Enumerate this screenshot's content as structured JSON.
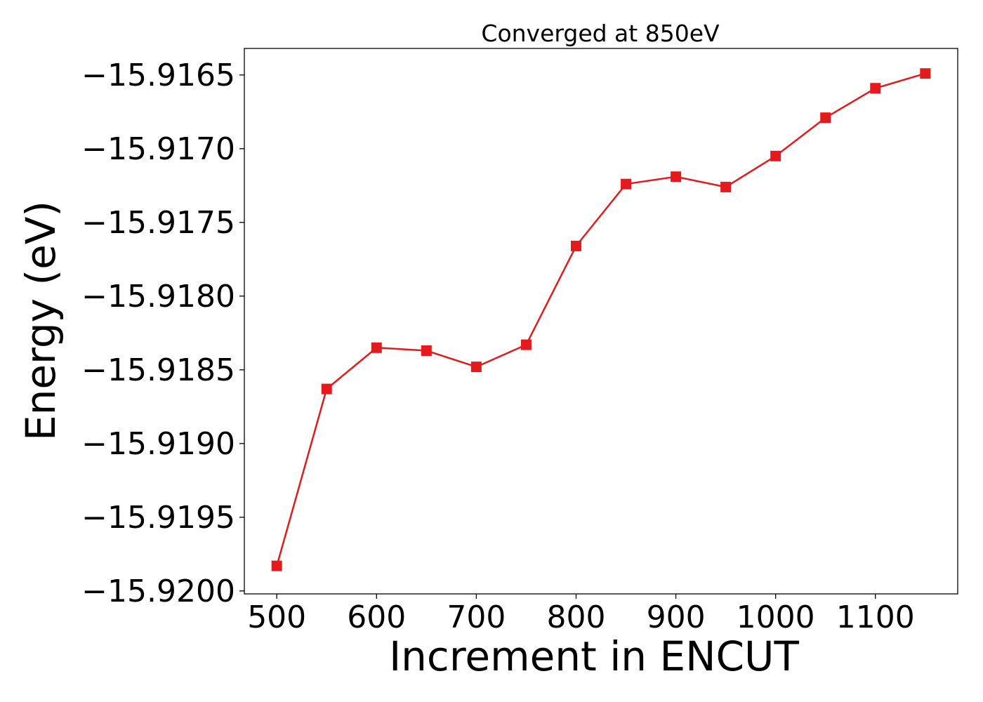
{
  "chart_data": {
    "type": "line",
    "title": "Converged at 850eV",
    "xlabel": "Increment in ENCUT",
    "ylabel": "Energy (eV)",
    "xlim": [
      467.5,
      1182.5
    ],
    "ylim": [
      -15.92002,
      -15.91632
    ],
    "x_ticks": [
      500,
      600,
      700,
      800,
      900,
      1000,
      1100
    ],
    "y_ticks": [
      -15.9165,
      -15.917,
      -15.9175,
      -15.918,
      -15.9185,
      -15.919,
      -15.9195,
      -15.92
    ],
    "x_tick_labels": [
      "500",
      "600",
      "700",
      "800",
      "900",
      "1000",
      "1100"
    ],
    "y_tick_labels": [
      "−15.9165",
      "−15.9170",
      "−15.9175",
      "−15.9180",
      "−15.9185",
      "−15.9190",
      "−15.9195",
      "−15.9200"
    ],
    "grid": false,
    "series": [
      {
        "color": "#e41a1c",
        "marker": "square",
        "x": [
          500,
          550,
          600,
          650,
          700,
          750,
          800,
          850,
          900,
          950,
          1000,
          1050,
          1100,
          1150
        ],
        "y": [
          -15.91983,
          -15.91863,
          -15.91835,
          -15.91837,
          -15.91848,
          -15.91833,
          -15.91766,
          -15.91724,
          -15.91719,
          -15.91726,
          -15.91705,
          -15.91679,
          -15.91659,
          -15.91649
        ]
      }
    ]
  }
}
